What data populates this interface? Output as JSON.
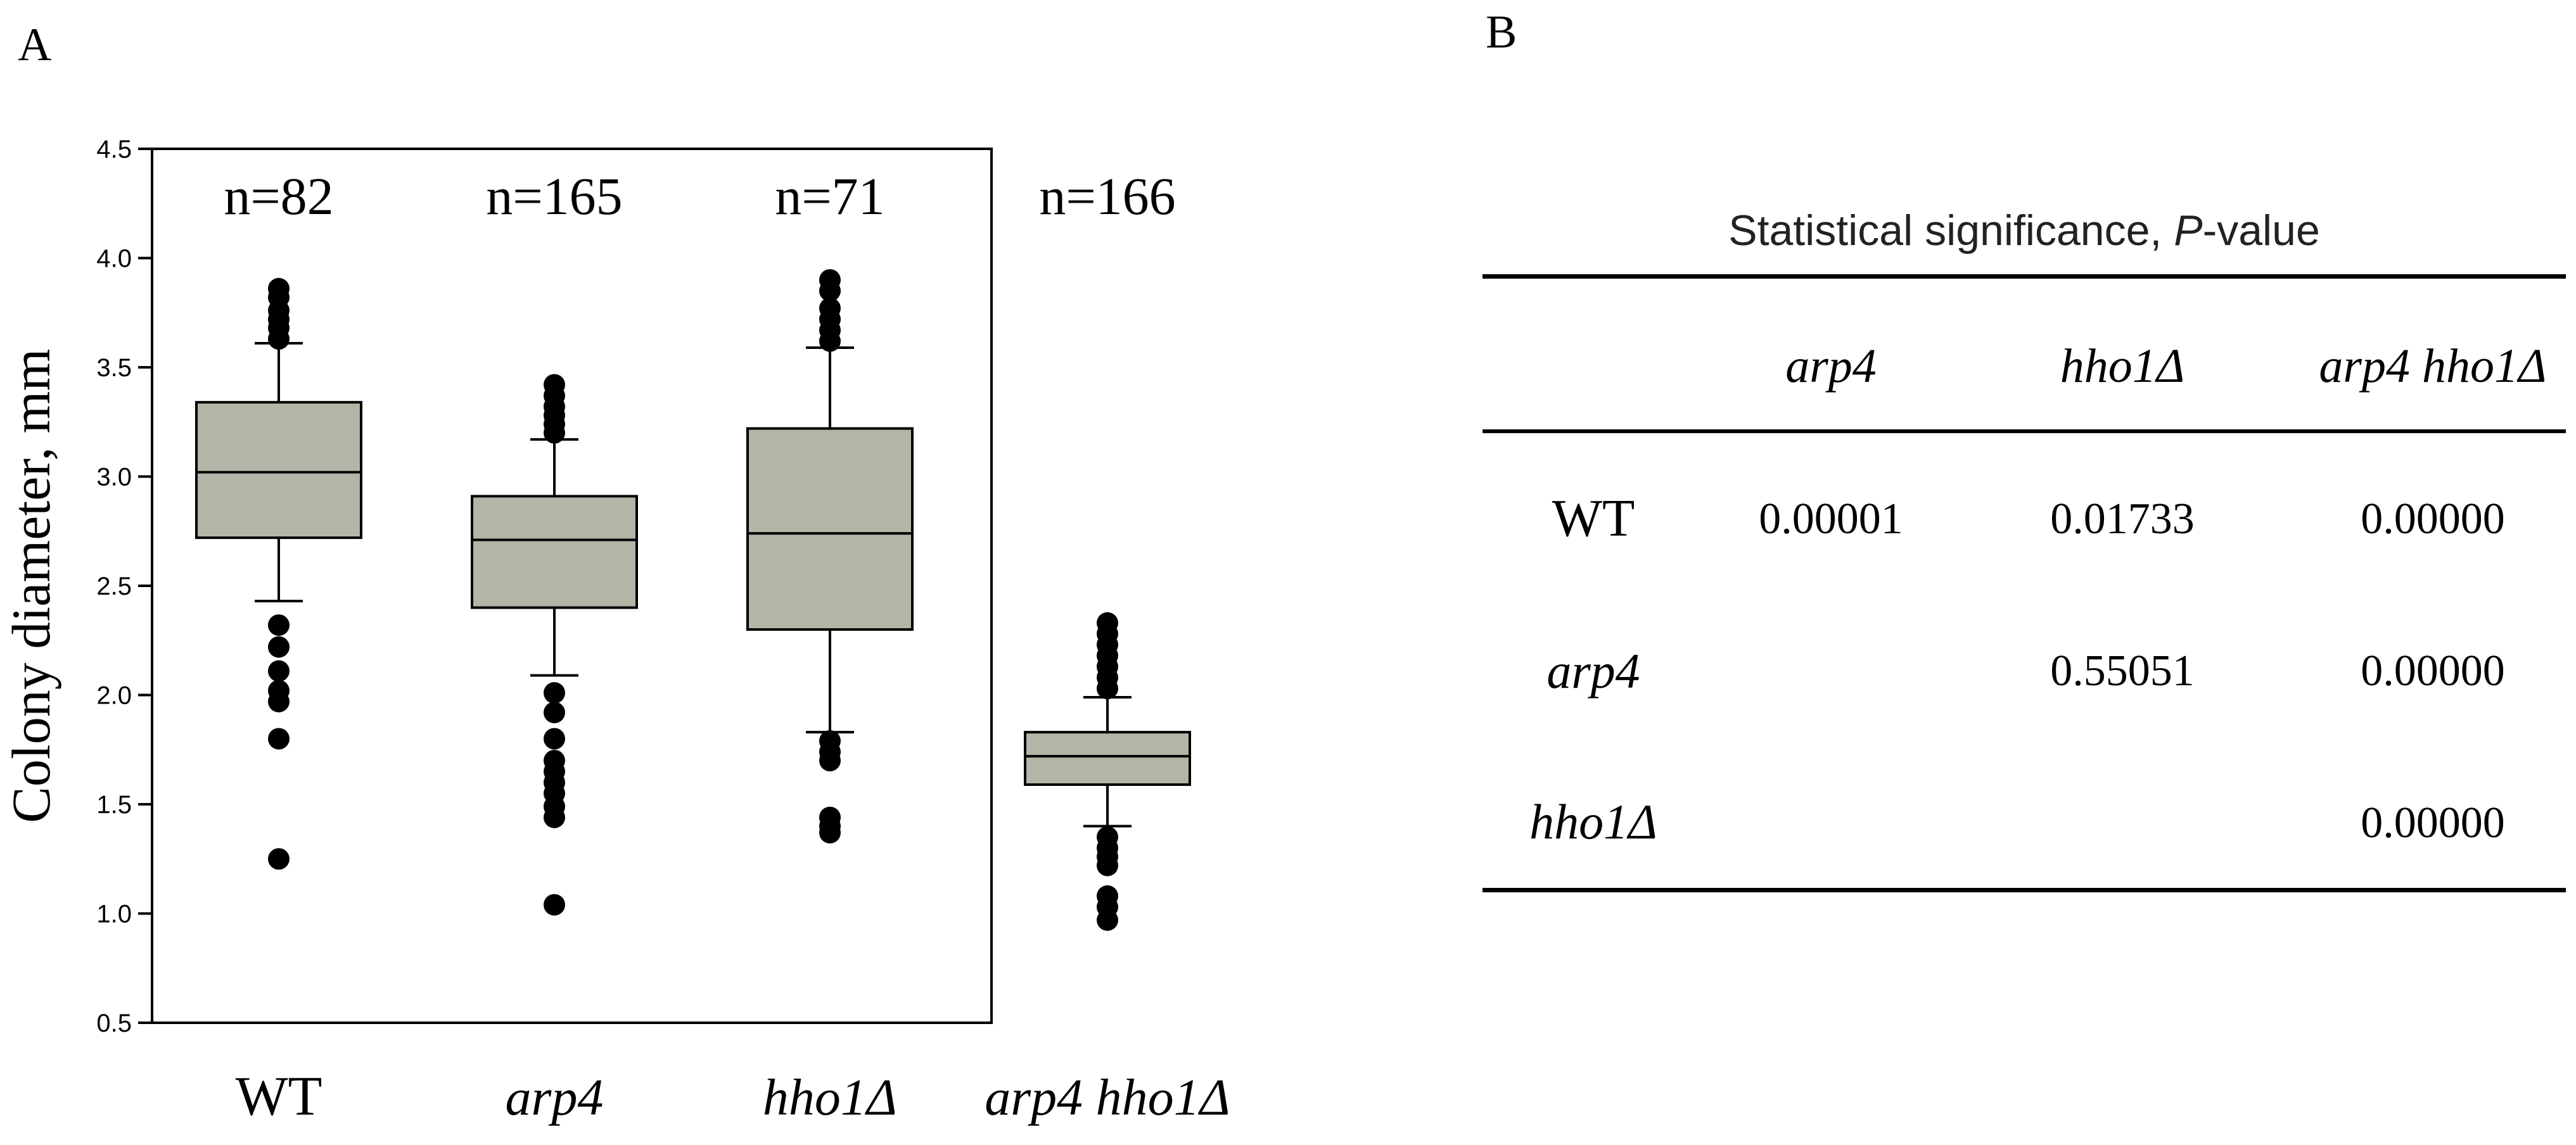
{
  "panels": {
    "a": "A",
    "b": "B"
  },
  "chart_data": {
    "type": "box",
    "ylabel": "Colony diameter, mm",
    "ylim": [
      0.5,
      4.5
    ],
    "yticks": [
      "0.5",
      "1.0",
      "1.5",
      "2.0",
      "2.5",
      "3.0",
      "3.5",
      "4.0",
      "4.5"
    ],
    "ytick_values": [
      0.5,
      1.0,
      1.5,
      2.0,
      2.5,
      3.0,
      3.5,
      4.0,
      4.5
    ],
    "box_color": "#b5b5a7",
    "groups": [
      {
        "label": "WT",
        "italic": false,
        "n_label": "n=82",
        "whisker_low": 2.43,
        "q1": 2.72,
        "median": 3.02,
        "q3": 3.34,
        "whisker_high": 3.61,
        "outliers": [
          3.63,
          3.68,
          3.72,
          3.76,
          3.82,
          3.86,
          2.32,
          2.22,
          2.11,
          2.02,
          1.97,
          1.8,
          1.25
        ]
      },
      {
        "label": "arp4",
        "italic": true,
        "n_label": "n=165",
        "whisker_low": 2.09,
        "q1": 2.4,
        "median": 2.71,
        "q3": 2.91,
        "whisker_high": 3.17,
        "outliers": [
          3.2,
          3.24,
          3.28,
          3.32,
          3.37,
          3.42,
          2.01,
          1.92,
          1.8,
          1.7,
          1.65,
          1.6,
          1.55,
          1.49,
          1.44,
          1.04
        ]
      },
      {
        "label": "hho1Δ",
        "italic": true,
        "n_label": "n=71",
        "whisker_low": 1.83,
        "q1": 2.3,
        "median": 2.74,
        "q3": 3.22,
        "whisker_high": 3.59,
        "outliers": [
          3.62,
          3.67,
          3.72,
          3.77,
          3.85,
          3.9,
          1.79,
          1.74,
          1.7,
          1.44,
          1.4,
          1.37
        ]
      },
      {
        "label": "arp4 hho1Δ",
        "italic": true,
        "n_label": "n=166",
        "whisker_low": 1.4,
        "q1": 1.59,
        "median": 1.72,
        "q3": 1.83,
        "whisker_high": 1.99,
        "outliers": [
          2.03,
          2.08,
          2.13,
          2.18,
          2.23,
          2.28,
          2.33,
          1.35,
          1.3,
          1.26,
          1.22,
          1.08,
          1.03,
          0.97
        ]
      }
    ]
  },
  "table": {
    "title_prefix": "Statistical significance, ",
    "title_italic": "P",
    "title_suffix": "-value",
    "columns": [
      "arp4",
      "hho1Δ",
      "arp4 hho1Δ"
    ],
    "rows": [
      {
        "label": "WT",
        "values": [
          "0.00001",
          "0.01733",
          "0.00000"
        ]
      },
      {
        "label": "arp4",
        "values": [
          "",
          "0.55051",
          "0.00000"
        ]
      },
      {
        "label": "hho1Δ",
        "values": [
          "",
          "",
          "0.00000"
        ]
      }
    ]
  }
}
